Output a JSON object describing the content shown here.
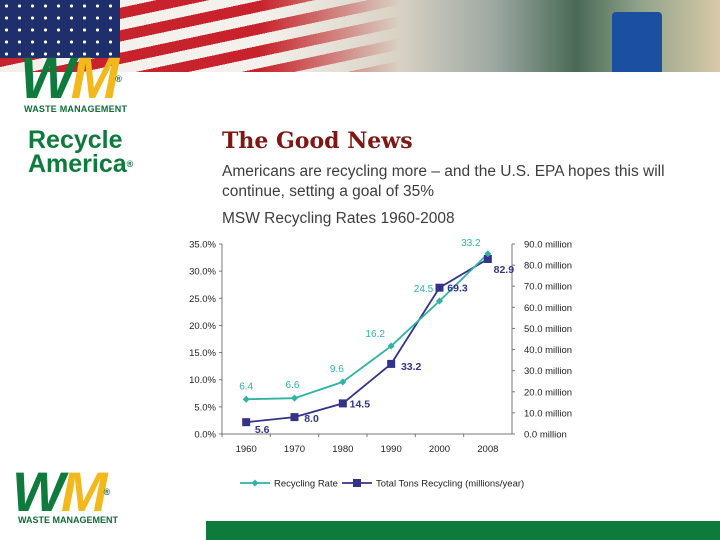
{
  "logo_top": {
    "w": "W",
    "m": "M",
    "reg": "®",
    "text": "WASTE MANAGEMENT"
  },
  "recycle_america": {
    "line1": "Recycle",
    "line2": "America",
    "reg": "®"
  },
  "logo_bottom": {
    "w": "W",
    "m": "M",
    "reg": "®",
    "text": "WASTE MANAGEMENT"
  },
  "slide": {
    "title": "The Good News",
    "subtitle": "Americans are recycling more – and the U.S. EPA hopes this will continue, setting a goal of 35%",
    "chart_title": "MSW Recycling Rates 1960-2008"
  },
  "colors": {
    "rate": "#2fb3a4",
    "tons": "#33338a",
    "title": "#7f1714",
    "brand_green": "#0e7a3c",
    "brand_yellow": "#f2b81c"
  },
  "chart_data": {
    "type": "line",
    "title": "MSW Recycling Rates 1960-2008",
    "categories": [
      "1960",
      "1970",
      "1980",
      "1990",
      "2000",
      "2008"
    ],
    "y_left": {
      "ticks": [
        "35.0%",
        "30.0%",
        "25.0%",
        "20.0%",
        "15.0%",
        "10.0%",
        "5.0%",
        "0.0%"
      ],
      "range": [
        0,
        35
      ]
    },
    "y_right": {
      "ticks": [
        "90.0 million",
        "80.0 million",
        "70.0 million",
        "60.0 million",
        "50.0 million",
        "40.0 million",
        "30.0 million",
        "20.0 million",
        "10.0 million",
        "0.0 million"
      ],
      "range": [
        0,
        90
      ]
    },
    "series": [
      {
        "name": "Recycling Rate",
        "axis": "left",
        "values": [
          6.4,
          6.6,
          9.6,
          16.2,
          24.5,
          33.2
        ],
        "labels": [
          "6.4",
          "6.6",
          "9.6",
          "16.2",
          "24.5",
          "33.2"
        ]
      },
      {
        "name": "Total Tons Recycling (millions/year)",
        "axis": "right",
        "values": [
          5.6,
          8.0,
          14.5,
          33.2,
          69.3,
          82.9
        ],
        "labels": [
          "5.6",
          "8.0",
          "14.5",
          "33.2",
          "69.3",
          "82.9"
        ]
      }
    ],
    "grid": false,
    "legend": "bottom"
  }
}
